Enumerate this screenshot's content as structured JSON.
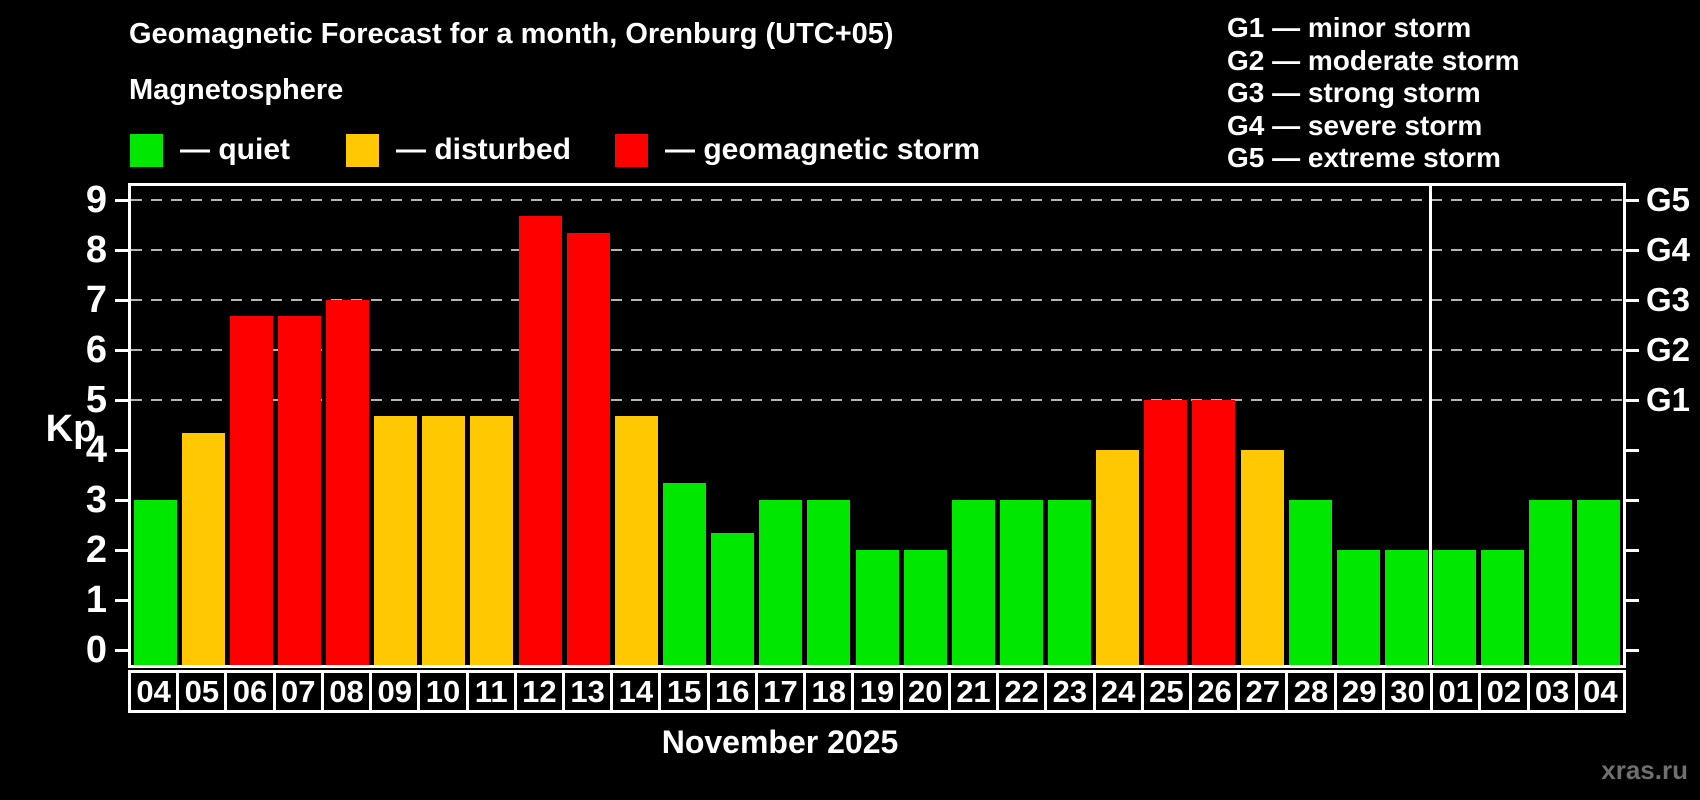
{
  "header": {
    "title": "Geomagnetic Forecast for a month, Orenburg (UTC+05)",
    "subtitle": "Magnetosphere"
  },
  "legend": {
    "items": [
      {
        "key": "quiet",
        "label": "— quiet",
        "color": "#00e800"
      },
      {
        "key": "disturbed",
        "label": "— disturbed",
        "color": "#ffc800"
      },
      {
        "key": "storm",
        "label": "— geomagnetic storm",
        "color": "#ff0000"
      }
    ]
  },
  "g_scale_legend": {
    "lines": [
      "G1 — minor storm",
      "G2 — moderate storm",
      "G3 — strong storm",
      "G4 — severe storm",
      "G5 — extreme storm"
    ]
  },
  "watermark": "xras.ru",
  "chart_data": {
    "type": "bar",
    "title": "Geomagnetic Forecast for a month, Orenburg (UTC+05)",
    "subtitle": "Magnetosphere",
    "ylabel": "Kp",
    "xlabel": "November 2025",
    "month_label": "November 2025",
    "ylim": [
      -0.3,
      9.3
    ],
    "yticks": [
      0,
      1,
      2,
      3,
      4,
      5,
      6,
      7,
      8,
      9
    ],
    "gridlines_at": [
      5,
      6,
      7,
      8,
      9
    ],
    "grid": "dashed horizontal at Kp 5-9",
    "right_axis_labels": [
      {
        "label": "G1",
        "kp": 5
      },
      {
        "label": "G2",
        "kp": 6
      },
      {
        "label": "G3",
        "kp": 7
      },
      {
        "label": "G4",
        "kp": 8
      },
      {
        "label": "G5",
        "kp": 9
      }
    ],
    "categories": [
      "04",
      "05",
      "06",
      "07",
      "08",
      "09",
      "10",
      "11",
      "12",
      "13",
      "14",
      "15",
      "16",
      "17",
      "18",
      "19",
      "20",
      "21",
      "22",
      "23",
      "24",
      "25",
      "26",
      "27",
      "28",
      "29",
      "30",
      "01",
      "02",
      "03",
      "04"
    ],
    "values": [
      3.0,
      4.33,
      6.67,
      6.67,
      7.0,
      4.67,
      4.67,
      4.67,
      8.67,
      8.33,
      4.67,
      3.33,
      2.33,
      3.0,
      3.0,
      2.0,
      2.0,
      3.0,
      3.0,
      3.0,
      4.0,
      5.0,
      5.0,
      4.0,
      3.0,
      2.0,
      2.0,
      2.0,
      2.0,
      3.0,
      3.0
    ],
    "states": [
      "quiet",
      "disturbed",
      "storm",
      "storm",
      "storm",
      "disturbed",
      "disturbed",
      "disturbed",
      "storm",
      "storm",
      "disturbed",
      "quiet",
      "quiet",
      "quiet",
      "quiet",
      "quiet",
      "quiet",
      "quiet",
      "quiet",
      "quiet",
      "disturbed",
      "storm",
      "storm",
      "disturbed",
      "quiet",
      "quiet",
      "quiet",
      "quiet",
      "quiet",
      "quiet",
      "quiet"
    ],
    "colors": {
      "quiet": "#00e800",
      "disturbed": "#ffc800",
      "storm": "#ff0000"
    },
    "month_separator_after_index": 26,
    "legend_position": "top-left",
    "background": "#000000"
  }
}
